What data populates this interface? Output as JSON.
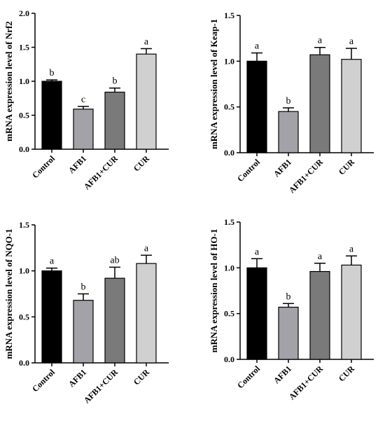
{
  "chart_data": [
    {
      "type": "bar",
      "ylabel": "mRNA expression level of Nrf2",
      "categories": [
        "Control",
        "AFB1",
        "AFB1+CUR",
        "CUR"
      ],
      "values": [
        1.0,
        0.59,
        0.84,
        1.4
      ],
      "errors": [
        0.02,
        0.04,
        0.06,
        0.08
      ],
      "letters": [
        "b",
        "c",
        "b",
        "a"
      ],
      "ylim": [
        0,
        2.0
      ],
      "yticks": [
        "0.0",
        "0.5",
        "1.0",
        "1.5",
        "2.0"
      ],
      "colors": [
        "#000000",
        "#a2a2a8",
        "#7a7a7a",
        "#d0d0d0"
      ]
    },
    {
      "type": "bar",
      "ylabel": "mRNA expression level of Keap-1",
      "categories": [
        "Control",
        "AFB1",
        "AFB1+CUR",
        "CUR"
      ],
      "values": [
        1.0,
        0.45,
        1.07,
        1.02
      ],
      "errors": [
        0.09,
        0.04,
        0.08,
        0.12
      ],
      "letters": [
        "a",
        "b",
        "a",
        "a"
      ],
      "ylim": [
        0,
        1.5
      ],
      "yticks": [
        "0.0",
        "0.5",
        "1.0",
        "1.5"
      ],
      "colors": [
        "#000000",
        "#a2a2a8",
        "#7a7a7a",
        "#d0d0d0"
      ]
    },
    {
      "type": "bar",
      "ylabel": "mRNA expression level of NQO-1",
      "categories": [
        "Control",
        "AFB1",
        "AFB1+CUR",
        "CUR"
      ],
      "values": [
        1.0,
        0.68,
        0.92,
        1.08
      ],
      "errors": [
        0.03,
        0.07,
        0.12,
        0.09
      ],
      "letters": [
        "a",
        "b",
        "ab",
        "a"
      ],
      "ylim": [
        0,
        1.5
      ],
      "yticks": [
        "0.0",
        "0.5",
        "1.0",
        "1.5"
      ],
      "colors": [
        "#000000",
        "#a2a2a8",
        "#7a7a7a",
        "#d0d0d0"
      ]
    },
    {
      "type": "bar",
      "ylabel": "mRNA expression level of HO-1",
      "categories": [
        "Control",
        "AFB1",
        "AFB1+CUR",
        "CUR"
      ],
      "values": [
        1.0,
        0.57,
        0.96,
        1.03
      ],
      "errors": [
        0.1,
        0.04,
        0.09,
        0.1
      ],
      "letters": [
        "a",
        "b",
        "a",
        "a"
      ],
      "ylim": [
        0,
        1.5
      ],
      "yticks": [
        "0.0",
        "0.5",
        "1.0",
        "1.5"
      ],
      "colors": [
        "#000000",
        "#a2a2a8",
        "#7a7a7a",
        "#d0d0d0"
      ]
    }
  ]
}
